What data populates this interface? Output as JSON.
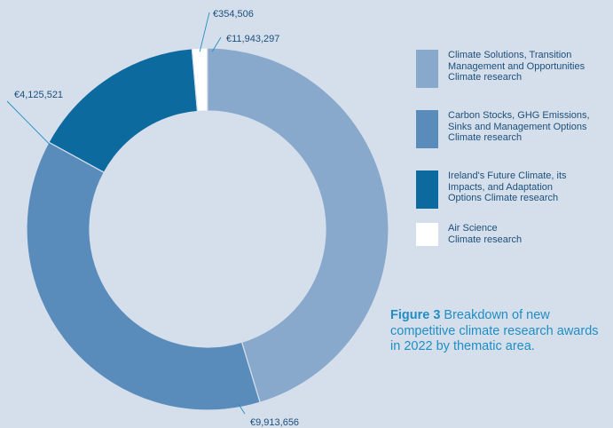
{
  "chart_data": {
    "type": "pie",
    "donut": true,
    "slices": [
      {
        "label": "Climate Solutions, Transition Management and Opportunities Climate research",
        "value": 11943297,
        "value_label": "€11,943,297",
        "color": "#88a9cb"
      },
      {
        "label": "Carbon Stocks, GHG Emissions, Sinks and Management Options Climate research",
        "value": 9913656,
        "value_label": "€9,913,656",
        "color": "#5a8cbb"
      },
      {
        "label": "Ireland's Future Climate, its Impacts, and Adaptation Options Climate research",
        "value": 4125521,
        "value_label": "€4,125,521",
        "color": "#0d6a9f"
      },
      {
        "label": "Air Science Climate research",
        "value": 354506,
        "value_label": "€354,506",
        "color": "#ffffff"
      }
    ],
    "legend_placement": "right"
  },
  "legend": [
    {
      "text": "Climate Solutions, Transition\nManagement and Opportunities\nClimate research",
      "color": "#88a9cb"
    },
    {
      "text": "Carbon Stocks, GHG Emissions,\nSinks and Management Options\nClimate research",
      "color": "#5a8cbb"
    },
    {
      "text": "Ireland's Future Climate, its\nImpacts, and Adaptation\nOptions Climate research",
      "color": "#0d6a9f"
    },
    {
      "text": "Air Science\nClimate research",
      "color": "#ffffff"
    }
  ],
  "caption": {
    "bold": "Figure 3",
    "text": " Breakdown of new competitive climate research awards in 2022 by thematic area."
  }
}
